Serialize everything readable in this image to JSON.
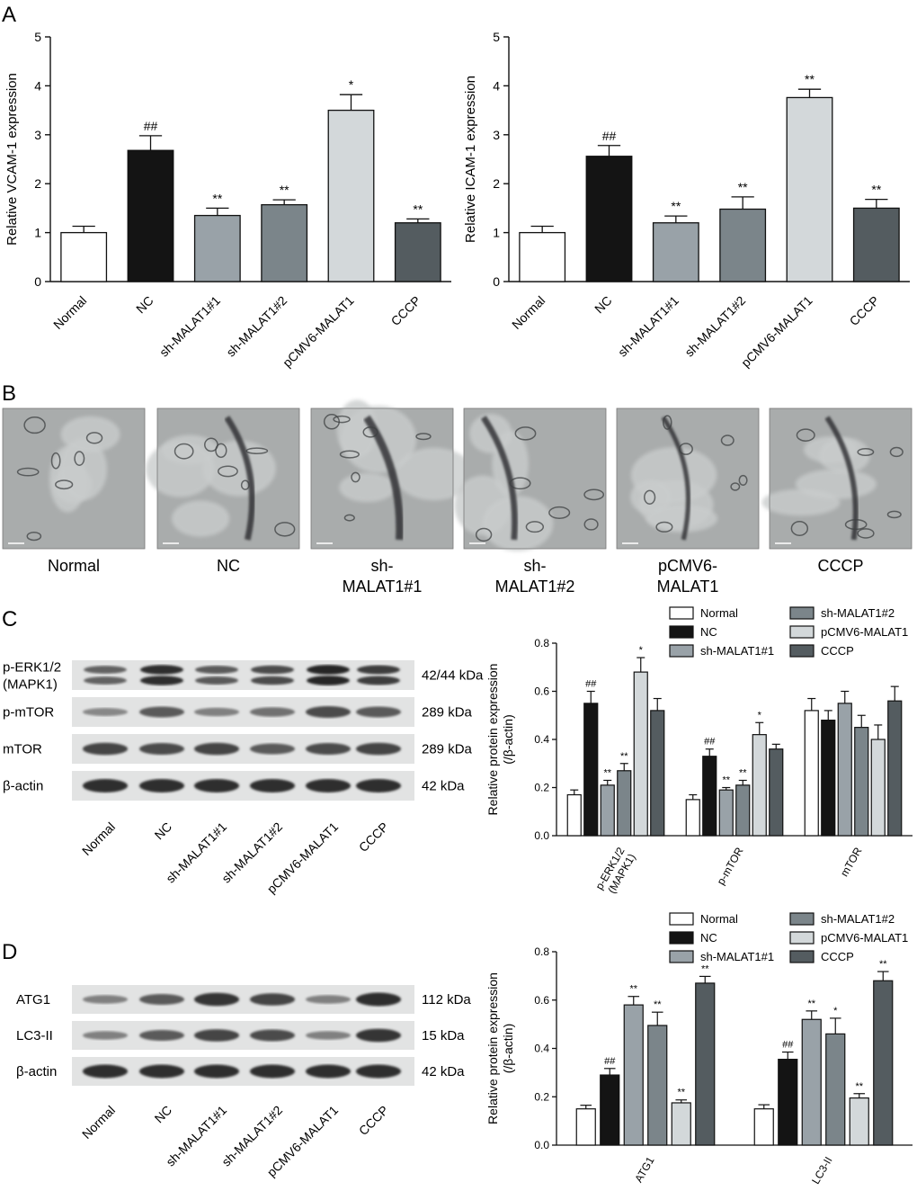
{
  "panel_labels": {
    "a": "A",
    "b": "B",
    "c": "C",
    "d": "D"
  },
  "colors": {
    "Normal": "#ffffff",
    "NC": "#141414",
    "sh-MALAT1#1": "#99a2a8",
    "sh-MALAT1#2": "#7b858a",
    "pCMV6-MALAT1": "#d3d8da",
    "CCCP": "#545c60"
  },
  "chart_data": [
    {
      "id": "vcam",
      "type": "bar",
      "categories": [
        "Normal",
        "NC",
        "sh-MALAT1#1",
        "sh-MALAT1#2",
        "pCMV6-MALAT1",
        "CCCP"
      ],
      "values": [
        1.0,
        2.68,
        1.35,
        1.57,
        3.5,
        1.2
      ],
      "errors": [
        0.13,
        0.3,
        0.15,
        0.1,
        0.32,
        0.08
      ],
      "annotations": [
        "",
        "##",
        "**",
        "**",
        "*",
        "**"
      ],
      "ylabel": "Relative VCAM-1 expression",
      "ylim": [
        0,
        5
      ],
      "yticks": [
        "0",
        "1",
        "2",
        "3",
        "4",
        "5"
      ]
    },
    {
      "id": "icam",
      "type": "bar",
      "categories": [
        "Normal",
        "NC",
        "sh-MALAT1#1",
        "sh-MALAT1#2",
        "pCMV6-MALAT1",
        "CCCP"
      ],
      "values": [
        1.0,
        2.56,
        1.2,
        1.48,
        3.76,
        1.5
      ],
      "errors": [
        0.13,
        0.22,
        0.14,
        0.25,
        0.17,
        0.18
      ],
      "annotations": [
        "",
        "##",
        "**",
        "**",
        "**",
        "**"
      ],
      "ylabel": "Relative ICAM-1 expression",
      "ylim": [
        0,
        5
      ],
      "yticks": [
        "0",
        "1",
        "2",
        "3",
        "4",
        "5"
      ]
    },
    {
      "id": "erk",
      "type": "bar",
      "categories": [
        "p-ERK1/2 (MAPK1)",
        "p-mTOR",
        "mTOR"
      ],
      "category_lines": [
        [
          "p-ERK1/2",
          "(MAPK1)"
        ],
        [
          "p-mTOR"
        ],
        [
          "mTOR"
        ]
      ],
      "series": [
        {
          "name": "Normal",
          "values": [
            0.17,
            0.15,
            0.52
          ],
          "errors": [
            0.02,
            0.02,
            0.05
          ],
          "annotations": [
            "",
            "",
            ""
          ]
        },
        {
          "name": "NC",
          "values": [
            0.55,
            0.33,
            0.48
          ],
          "errors": [
            0.05,
            0.03,
            0.04
          ],
          "annotations": [
            "##",
            "##",
            ""
          ]
        },
        {
          "name": "sh-MALAT1#1",
          "values": [
            0.21,
            0.19,
            0.55
          ],
          "errors": [
            0.02,
            0.01,
            0.05
          ],
          "annotations": [
            "**",
            "**",
            ""
          ]
        },
        {
          "name": "sh-MALAT1#2",
          "values": [
            0.27,
            0.21,
            0.45
          ],
          "errors": [
            0.03,
            0.02,
            0.05
          ],
          "annotations": [
            "**",
            "**",
            ""
          ]
        },
        {
          "name": "pCMV6-MALAT1",
          "values": [
            0.68,
            0.42,
            0.4
          ],
          "errors": [
            0.06,
            0.05,
            0.06
          ],
          "annotations": [
            "*",
            "*",
            ""
          ]
        },
        {
          "name": "CCCP",
          "values": [
            0.52,
            0.36,
            0.56
          ],
          "errors": [
            0.05,
            0.02,
            0.06
          ],
          "annotations": [
            "",
            "",
            ""
          ]
        }
      ],
      "ylabel": "Relative protein expression",
      "ylabel2": "(/β-actin)",
      "ylim": [
        0,
        0.8
      ],
      "yticks": [
        "0.0",
        "0.2",
        "0.4",
        "0.6",
        "0.8"
      ]
    },
    {
      "id": "atg",
      "type": "bar",
      "categories": [
        "ATG1",
        "LC3-II"
      ],
      "category_lines": [
        [
          "ATG1"
        ],
        [
          "LC3-II"
        ]
      ],
      "series": [
        {
          "name": "Normal",
          "values": [
            0.15,
            0.15
          ],
          "errors": [
            0.015,
            0.017
          ],
          "annotations": [
            "",
            ""
          ]
        },
        {
          "name": "NC",
          "values": [
            0.29,
            0.355
          ],
          "errors": [
            0.027,
            0.03
          ],
          "annotations": [
            "##",
            "##"
          ]
        },
        {
          "name": "sh-MALAT1#1",
          "values": [
            0.58,
            0.52
          ],
          "errors": [
            0.035,
            0.035
          ],
          "annotations": [
            "**",
            "**"
          ]
        },
        {
          "name": "sh-MALAT1#2",
          "values": [
            0.495,
            0.46
          ],
          "errors": [
            0.055,
            0.065
          ],
          "annotations": [
            "**",
            "*"
          ]
        },
        {
          "name": "pCMV6-MALAT1",
          "values": [
            0.175,
            0.195
          ],
          "errors": [
            0.012,
            0.018
          ],
          "annotations": [
            "**",
            "**"
          ]
        },
        {
          "name": "CCCP",
          "values": [
            0.67,
            0.68
          ],
          "errors": [
            0.028,
            0.038
          ],
          "annotations": [
            "**",
            "**"
          ]
        }
      ],
      "ylabel": "Relative protein expression",
      "ylabel2": "(/β-actin)",
      "ylim": [
        0,
        0.8
      ],
      "yticks": [
        "0.0",
        "0.2",
        "0.4",
        "0.6",
        "0.8"
      ]
    }
  ],
  "legend": [
    "Normal",
    "NC",
    "sh-MALAT1#1",
    "sh-MALAT1#2",
    "pCMV6-MALAT1",
    "CCCP"
  ],
  "tem": {
    "captions": [
      [
        "Normal"
      ],
      [
        "NC"
      ],
      [
        "sh-",
        "MALAT1#1"
      ],
      [
        "sh-",
        "MALAT1#2"
      ],
      [
        "pCMV6-",
        "MALAT1"
      ],
      [
        "CCCP"
      ]
    ]
  },
  "blot_c": {
    "rows": [
      {
        "label": [
          "p-ERK1/2",
          "(MAPK1)"
        ],
        "size": "42/44 kDa",
        "intensity": [
          0.55,
          0.9,
          0.6,
          0.7,
          0.95,
          0.8
        ],
        "double": true
      },
      {
        "label": [
          "p-mTOR"
        ],
        "size": "289 kDa",
        "intensity": [
          0.3,
          0.6,
          0.35,
          0.45,
          0.7,
          0.6
        ],
        "double": false
      },
      {
        "label": [
          "mTOR"
        ],
        "size": "289 kDa",
        "intensity": [
          0.75,
          0.7,
          0.75,
          0.6,
          0.7,
          0.75
        ],
        "double": false
      },
      {
        "label": [
          "β-actin"
        ],
        "size": "42 kDa",
        "intensity": [
          0.9,
          0.9,
          0.9,
          0.9,
          0.9,
          0.9
        ],
        "double": false
      }
    ],
    "lanes": [
      "Normal",
      "NC",
      "sh-MALAT1#1",
      "sh-MALAT1#2",
      "pCMV6-MALAT1",
      "CCCP"
    ]
  },
  "blot_d": {
    "rows": [
      {
        "label": [
          "ATG1"
        ],
        "size": "112 kDa",
        "intensity": [
          0.35,
          0.6,
          0.85,
          0.75,
          0.35,
          0.9
        ],
        "double": false
      },
      {
        "label": [
          "LC3-II"
        ],
        "size": "15 kDa",
        "intensity": [
          0.35,
          0.6,
          0.75,
          0.7,
          0.35,
          0.85
        ],
        "double": false
      },
      {
        "label": [
          "β-actin"
        ],
        "size": "42 kDa",
        "intensity": [
          0.9,
          0.9,
          0.9,
          0.9,
          0.9,
          0.9
        ],
        "double": false
      }
    ],
    "lanes": [
      "Normal",
      "NC",
      "sh-MALAT1#1",
      "sh-MALAT1#2",
      "pCMV6-MALAT1",
      "CCCP"
    ]
  }
}
